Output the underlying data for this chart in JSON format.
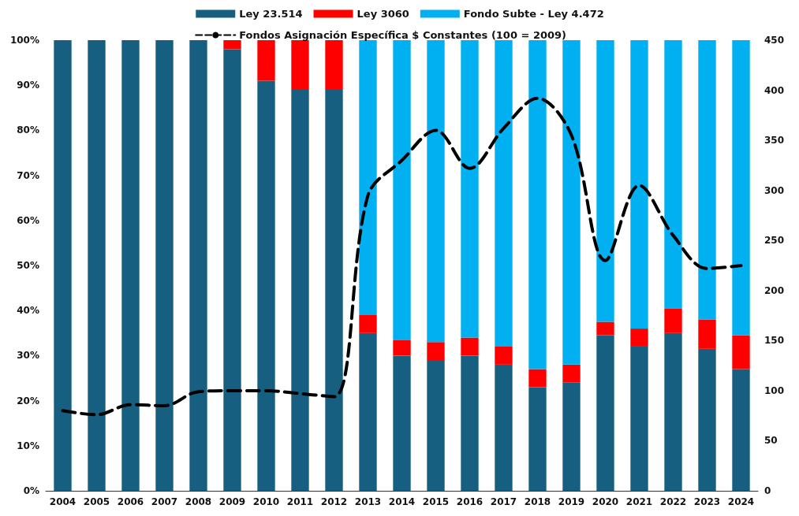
{
  "chart_data": {
    "type": "bar",
    "stacked": true,
    "categories": [
      "2004",
      "2005",
      "2006",
      "2007",
      "2008",
      "2009",
      "2010",
      "2011",
      "2012",
      "2013",
      "2014",
      "2015",
      "2016",
      "2017",
      "2018",
      "2019",
      "2020",
      "2021",
      "2022",
      "2023",
      "2024"
    ],
    "series": [
      {
        "name": "Ley 23.514",
        "color": "#175f80",
        "values": [
          100,
          100,
          100,
          100,
          100,
          98,
          91,
          89,
          89,
          35,
          30,
          29,
          30,
          28,
          23,
          24,
          34.5,
          32,
          35,
          31.5,
          27
        ]
      },
      {
        "name": "Ley 3060",
        "color": "#ff0000",
        "values": [
          0,
          0,
          0,
          0,
          0,
          2,
          9,
          11,
          11,
          4,
          3.5,
          4,
          4,
          4,
          4,
          4,
          3,
          4,
          5.5,
          6.5,
          7.5
        ]
      },
      {
        "name": "Fondo Subte - Ley 4.472",
        "color": "#00b0f0",
        "values": [
          0,
          0,
          0,
          0,
          0,
          0,
          0,
          0,
          0,
          61,
          66.5,
          67,
          66,
          68,
          73,
          72,
          62.5,
          64,
          59.5,
          62,
          65.5
        ]
      },
      {
        "name": "Fondos Asignación Específica $ Constantes (100 = 2009)",
        "type": "line",
        "axis": "y2",
        "color": "#000000",
        "line_style": "dashed",
        "marker": "none",
        "values": [
          80,
          76,
          86,
          85,
          99,
          100,
          100,
          97,
          94,
          295,
          330,
          360,
          322,
          362,
          392,
          355,
          230,
          305,
          255,
          222,
          225
        ]
      }
    ],
    "ylim": [
      0,
      100
    ],
    "yticks": [
      {
        "value": 0,
        "label": "0%"
      },
      {
        "value": 10,
        "label": "10%"
      },
      {
        "value": 20,
        "label": "20%"
      },
      {
        "value": 30,
        "label": "30%"
      },
      {
        "value": 40,
        "label": "40%"
      },
      {
        "value": 50,
        "label": "50%"
      },
      {
        "value": 60,
        "label": "60%"
      },
      {
        "value": 70,
        "label": "70%"
      },
      {
        "value": 80,
        "label": "80%"
      },
      {
        "value": 90,
        "label": "90%"
      },
      {
        "value": 100,
        "label": "100%"
      }
    ],
    "y2lim": [
      0,
      450
    ],
    "y2ticks": [
      0,
      50,
      100,
      150,
      200,
      250,
      300,
      350,
      400,
      450
    ],
    "grid": false,
    "legend": "top"
  }
}
